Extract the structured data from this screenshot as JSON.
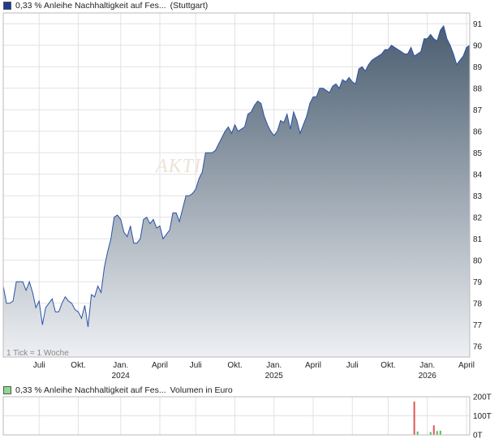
{
  "chart_data": [
    {
      "type": "area",
      "title": "0,33 % Anleihe Nachhaltigkeit auf Fes...",
      "exchange": "(Stuttgart)",
      "tick_note": "1 Tick = 1 Woche",
      "watermark": "AKTI",
      "color_line": "#2a52a8",
      "color_fill_top": "#4a5d70",
      "color_fill_bottom": "#eef0f3",
      "swatch_color": "#1f3b8f",
      "ylim": [
        75.5,
        91.5
      ],
      "yticks": [
        76,
        77,
        78,
        79,
        80,
        81,
        82,
        83,
        84,
        85,
        86,
        87,
        88,
        89,
        90,
        91
      ],
      "ytick_labels": [
        "76",
        "77",
        "78",
        "79",
        "80",
        "81",
        "82",
        "83",
        "84",
        "85",
        "86",
        "87",
        "88",
        "89",
        "90",
        "91"
      ],
      "xlim": [
        0,
        143
      ],
      "xticks": [
        {
          "x": 11,
          "label": "Juli"
        },
        {
          "x": 23,
          "label": "Okt."
        },
        {
          "x": 36,
          "label": "Jan."
        },
        {
          "x": 48,
          "label": "April"
        },
        {
          "x": 59,
          "label": "Juli"
        },
        {
          "x": 71,
          "label": "Okt."
        },
        {
          "x": 83,
          "label": "Jan."
        },
        {
          "x": 95,
          "label": "April"
        },
        {
          "x": 107,
          "label": "Juli"
        },
        {
          "x": 118,
          "label": "Okt."
        },
        {
          "x": 130,
          "label": "Jan."
        },
        {
          "x": 142,
          "label": "April"
        }
      ],
      "years": [
        {
          "x": 36,
          "label": "2024"
        },
        {
          "x": 83,
          "label": "2025"
        },
        {
          "x": 130,
          "label": "2026"
        }
      ],
      "grid": true,
      "series": [
        {
          "values": [
            78.8,
            78.0,
            78.0,
            78.1,
            79.0,
            79.0,
            79.0,
            78.6,
            79.0,
            78.5,
            77.8,
            78.1,
            77.0,
            77.8,
            78.0,
            78.2,
            77.6,
            77.6,
            78.0,
            78.3,
            78.1,
            78.0,
            77.7,
            77.6,
            77.3,
            77.9,
            76.9,
            78.4,
            78.3,
            78.8,
            78.5,
            79.7,
            80.4,
            81.0,
            82.0,
            82.1,
            81.9,
            81.3,
            81.1,
            81.6,
            80.8,
            80.8,
            81.0,
            81.9,
            82.0,
            81.7,
            81.9,
            81.5,
            81.6,
            81.0,
            81.2,
            81.4,
            82.2,
            82.2,
            81.8,
            82.4,
            83.0,
            83.0,
            83.1,
            83.3,
            83.8,
            84.1,
            85.0,
            85.0,
            85.0,
            85.1,
            85.4,
            85.7,
            86.0,
            86.2,
            85.9,
            86.3,
            86.0,
            86.1,
            86.2,
            86.8,
            86.9,
            87.2,
            87.4,
            87.3,
            86.7,
            86.3,
            86.0,
            85.8,
            86.0,
            86.5,
            86.4,
            86.8,
            86.1,
            86.9,
            86.5,
            85.9,
            86.3,
            86.7,
            87.3,
            87.6,
            87.6,
            88.0,
            88.0,
            87.9,
            87.8,
            88.1,
            88.2,
            88.0,
            88.4,
            88.3,
            88.5,
            88.3,
            88.2,
            88.9,
            89.0,
            88.8,
            89.1,
            89.3,
            89.4,
            89.5,
            89.6,
            89.8,
            89.8,
            90.0,
            89.9,
            89.8,
            89.7,
            89.6,
            89.6,
            89.9,
            89.5,
            89.6,
            89.7,
            90.3,
            90.3,
            90.5,
            90.3,
            90.2,
            90.7,
            90.9,
            90.3,
            90.0,
            89.6,
            89.1,
            89.3,
            89.5,
            89.9,
            90.0
          ]
        }
      ]
    },
    {
      "type": "bar",
      "title": "0,33 % Anleihe Nachhaltigkeit auf Fes...",
      "subtitle": "Volumen in Euro",
      "swatch_color": "#8fd88f",
      "ylim": [
        0,
        200
      ],
      "yticks": [
        0,
        100,
        200
      ],
      "ytick_labels": [
        "0T",
        "100T",
        "200T"
      ],
      "grid": true,
      "bars": [
        {
          "x": 126,
          "value": 175,
          "color": "#e05555"
        },
        {
          "x": 127,
          "value": 18,
          "color": "#55bb55"
        },
        {
          "x": 131,
          "value": 15,
          "color": "#55bb55"
        },
        {
          "x": 132,
          "value": 50,
          "color": "#e05555"
        },
        {
          "x": 133,
          "value": 20,
          "color": "#55bb55"
        },
        {
          "x": 134,
          "value": 22,
          "color": "#55bb55"
        }
      ]
    }
  ]
}
